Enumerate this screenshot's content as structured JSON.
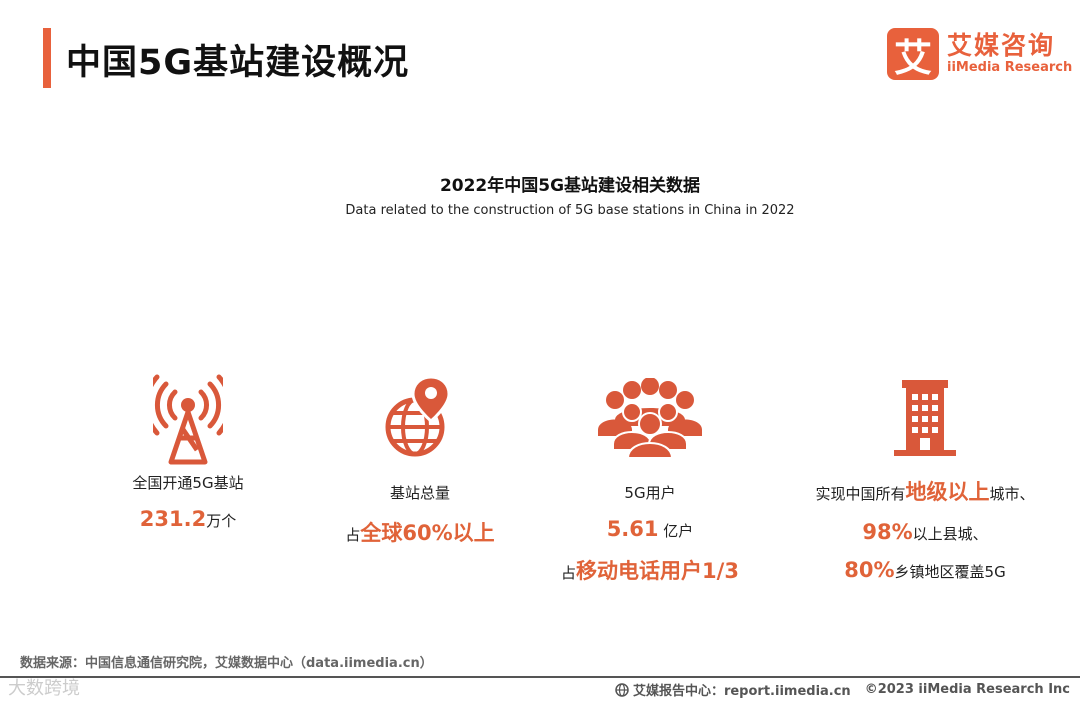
{
  "header": {
    "title": "中国5G基站建设概况",
    "logo_mark": "艾",
    "logo_cn": "艾媒咨询",
    "logo_en": "iiMedia Research"
  },
  "section": {
    "title": "2022年中国5G基站建设相关数据",
    "title_en": "Data related to the construction of 5G base stations in China in 2022"
  },
  "stats": [
    {
      "icon": "signal-tower-icon",
      "label": "全国开通5G基站",
      "value": "231.2",
      "unit": "万个"
    },
    {
      "icon": "globe-location-icon",
      "label": "基站总量",
      "prefix": "占",
      "highlight": "全球60%以上"
    },
    {
      "icon": "users-group-icon",
      "label": "5G用户",
      "value": "5.61",
      "unit": " 亿户",
      "prefix": "占",
      "highlight": "移动电话用户1/3"
    },
    {
      "icon": "building-icon",
      "pre": "实现中国所有",
      "highlight": "地级以上",
      "post": "城市、",
      "value2": "98%",
      "text2": "以上县城、",
      "value3": "80%",
      "text3": "乡镇地区覆盖5G"
    }
  ],
  "footer": {
    "source": "数据来源：中国信息通信研究院，艾媒数据中心（data.iimedia.cn）",
    "watermark": "大数跨境",
    "report_center": "艾媒报告中心：report.iimedia.cn",
    "copyright": "©2023  iiMedia Research  Inc"
  },
  "colors": {
    "accent": "#e8613c",
    "highlight": "#e06339",
    "icon": "#d9583a"
  }
}
